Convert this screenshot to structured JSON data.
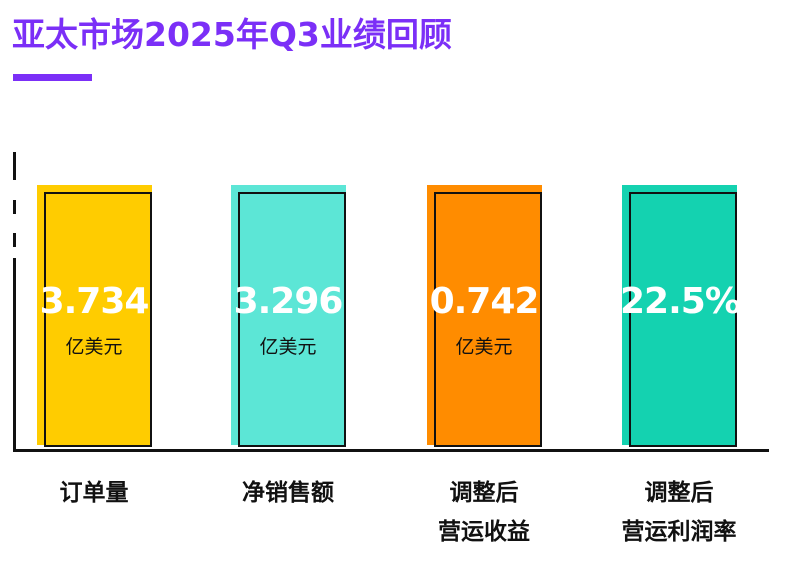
{
  "title": "亚太市场2025年Q3业绩回顾",
  "colors": {
    "title": "#7b2ff7",
    "bars": [
      "#ffcc00",
      "#5ce6d6",
      "#ff8c00",
      "#14d2b0"
    ]
  },
  "chart_data": {
    "type": "bar",
    "categories": [
      "订单量",
      "净销售额",
      "调整后营运收益",
      "调整后营运利润率"
    ],
    "category_lines": [
      [
        "订单量"
      ],
      [
        "净销售额"
      ],
      [
        "调整后",
        "营运收益"
      ],
      [
        "调整后",
        "营运利润率"
      ]
    ],
    "values": [
      3.734,
      3.296,
      0.742,
      22.5
    ],
    "value_labels": [
      "3.734",
      "3.296",
      "0.742",
      "22.5%"
    ],
    "units": [
      "亿美元",
      "亿美元",
      "亿美元",
      ""
    ]
  }
}
